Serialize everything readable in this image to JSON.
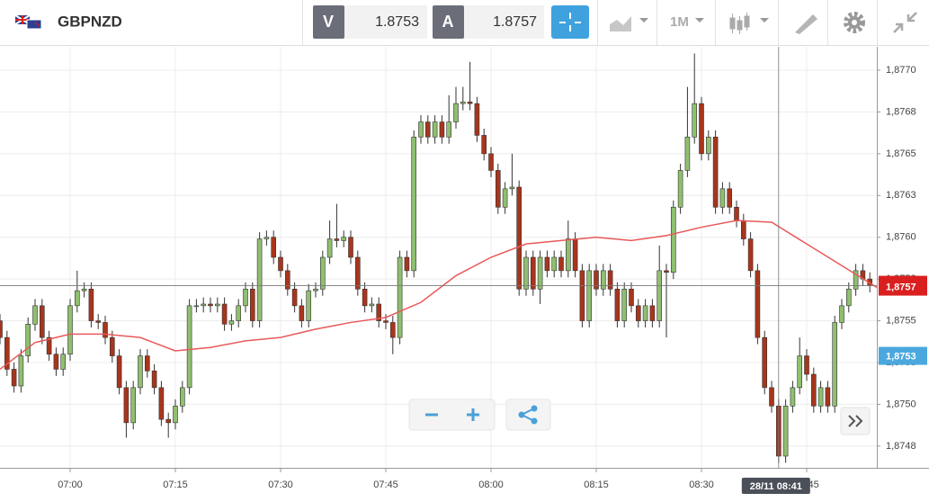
{
  "toolbar": {
    "symbol": "GBPNZD",
    "bid": {
      "label": "V",
      "price": "1.8753"
    },
    "ask": {
      "label": "A",
      "price": "1.8757"
    },
    "timeframe": "1M"
  },
  "chart_data": {
    "type": "candlestick",
    "x": [
      410,
      411,
      412,
      413,
      414,
      415,
      416,
      417,
      418,
      419,
      420,
      421,
      422,
      423,
      424,
      425,
      426,
      427,
      428,
      429,
      430,
      431,
      432,
      433,
      434,
      435,
      436,
      437,
      438,
      439,
      440,
      441,
      442,
      443,
      444,
      445,
      446,
      447,
      448,
      449,
      450,
      451,
      452,
      453,
      454,
      455,
      456,
      457,
      458,
      459,
      460,
      461,
      462,
      463,
      464,
      465,
      466,
      467,
      468,
      469,
      470,
      471,
      472,
      473,
      474,
      475,
      476,
      477,
      478,
      479,
      480,
      481,
      482,
      483,
      484,
      485,
      486,
      487,
      488,
      489,
      490,
      491,
      492,
      493,
      494,
      495,
      496,
      497,
      498,
      499,
      500,
      501,
      502,
      503,
      504,
      505,
      506,
      507,
      508,
      509,
      510,
      511,
      512,
      513,
      514,
      515,
      516,
      517,
      518,
      519,
      520,
      521,
      522,
      523,
      524,
      525,
      526,
      527,
      528,
      529,
      530,
      531,
      532,
      533,
      534
    ],
    "open": [
      1.8755,
      1.8754,
      1.87521,
      1.87511,
      1.87529,
      1.87548,
      1.87559,
      1.8754,
      1.8753,
      1.87521,
      1.8753,
      1.87559,
      1.87568,
      1.87569,
      1.8755,
      1.87549,
      1.8754,
      1.87529,
      1.8751,
      1.87489,
      1.8751,
      1.87529,
      1.8752,
      1.8751,
      1.87491,
      1.87489,
      1.87499,
      1.8751,
      1.87559,
      1.87559,
      1.8756,
      1.87559,
      1.8756,
      1.87548,
      1.8755,
      1.87559,
      1.87569,
      1.8755,
      1.87599,
      1.876,
      1.87588,
      1.8758,
      1.87569,
      1.87559,
      1.8755,
      1.87568,
      1.87569,
      1.87588,
      1.87599,
      1.87598,
      1.876,
      1.87588,
      1.87569,
      1.87559,
      1.8756,
      1.8755,
      1.87549,
      1.8754,
      1.87588,
      1.8758,
      1.8766,
      1.87669,
      1.8766,
      1.87669,
      1.8766,
      1.87669,
      1.8768,
      1.87681,
      1.8768,
      1.87661,
      1.8765,
      1.8764,
      1.87618,
      1.87629,
      1.8763,
      1.87569,
      1.87588,
      1.87569,
      1.87588,
      1.8758,
      1.87588,
      1.8758,
      1.87599,
      1.8758,
      1.8755,
      1.8758,
      1.87569,
      1.8758,
      1.87569,
      1.8755,
      1.87569,
      1.87559,
      1.8755,
      1.87559,
      1.8755,
      1.8758,
      1.87579,
      1.87618,
      1.8764,
      1.8766,
      1.8768,
      1.8765,
      1.8766,
      1.87618,
      1.87629,
      1.87618,
      1.8761,
      1.87599,
      1.8758,
      1.8754,
      1.8751,
      1.87499,
      1.87469,
      1.87499,
      1.8751,
      1.87529,
      1.87518,
      1.87499,
      1.8751,
      1.87499,
      1.87549,
      1.87559,
      1.87569,
      1.8758,
      1.87575
    ],
    "high": [
      1.87554,
      1.87544,
      1.87525,
      1.87533,
      1.87552,
      1.87563,
      1.87563,
      1.87544,
      1.87534,
      1.87534,
      1.87563,
      1.8758,
      1.87573,
      1.87573,
      1.87554,
      1.87553,
      1.87544,
      1.87533,
      1.87514,
      1.87514,
      1.87533,
      1.87533,
      1.87524,
      1.87514,
      1.87495,
      1.87503,
      1.87514,
      1.87563,
      1.87563,
      1.87564,
      1.87564,
      1.87564,
      1.87564,
      1.87554,
      1.87563,
      1.87573,
      1.87573,
      1.87603,
      1.87604,
      1.87604,
      1.87592,
      1.87584,
      1.87573,
      1.87563,
      1.87572,
      1.87573,
      1.87592,
      1.8761,
      1.8762,
      1.87604,
      1.87604,
      1.87592,
      1.87573,
      1.87564,
      1.87564,
      1.87554,
      1.87553,
      1.87592,
      1.87592,
      1.87664,
      1.87673,
      1.87673,
      1.87673,
      1.87673,
      1.87685,
      1.8769,
      1.8769,
      1.87705,
      1.87684,
      1.87665,
      1.87654,
      1.87644,
      1.87633,
      1.8765,
      1.87634,
      1.87592,
      1.87592,
      1.87592,
      1.87592,
      1.87592,
      1.87592,
      1.8761,
      1.87603,
      1.87584,
      1.87584,
      1.87584,
      1.87584,
      1.87584,
      1.87573,
      1.87573,
      1.87573,
      1.87563,
      1.87563,
      1.87563,
      1.87595,
      1.87584,
      1.87622,
      1.87644,
      1.8769,
      1.8771,
      1.87684,
      1.87664,
      1.87664,
      1.87633,
      1.87633,
      1.87622,
      1.87614,
      1.87603,
      1.87584,
      1.87544,
      1.87514,
      1.87503,
      1.87503,
      1.87514,
      1.8754,
      1.87533,
      1.87522,
      1.87514,
      1.87514,
      1.87553,
      1.87563,
      1.87573,
      1.87584,
      1.87584,
      1.87579
    ],
    "low": [
      1.87536,
      1.87517,
      1.87507,
      1.87507,
      1.87525,
      1.87544,
      1.87536,
      1.87526,
      1.87517,
      1.87517,
      1.87526,
      1.87555,
      1.87564,
      1.87546,
      1.87545,
      1.87536,
      1.87525,
      1.87506,
      1.8748,
      1.87485,
      1.87506,
      1.87516,
      1.87506,
      1.87487,
      1.8748,
      1.87485,
      1.87495,
      1.87506,
      1.87555,
      1.87555,
      1.87555,
      1.87555,
      1.87544,
      1.87544,
      1.87546,
      1.87555,
      1.87546,
      1.87546,
      1.87595,
      1.87584,
      1.87576,
      1.87565,
      1.87555,
      1.87546,
      1.87546,
      1.87564,
      1.87565,
      1.87584,
      1.87594,
      1.87594,
      1.87584,
      1.87565,
      1.87555,
      1.87555,
      1.87546,
      1.87545,
      1.8753,
      1.87536,
      1.87576,
      1.87576,
      1.87656,
      1.87656,
      1.87656,
      1.87656,
      1.87656,
      1.87665,
      1.87676,
      1.87676,
      1.87657,
      1.87646,
      1.87636,
      1.87614,
      1.87614,
      1.87625,
      1.87565,
      1.87565,
      1.87565,
      1.8756,
      1.87576,
      1.87576,
      1.87576,
      1.87576,
      1.87576,
      1.87546,
      1.87546,
      1.87565,
      1.87565,
      1.87565,
      1.87546,
      1.87546,
      1.87555,
      1.87546,
      1.87546,
      1.87546,
      1.87546,
      1.8754,
      1.87575,
      1.87614,
      1.87636,
      1.87656,
      1.87646,
      1.87646,
      1.87614,
      1.87614,
      1.87614,
      1.87606,
      1.87595,
      1.87576,
      1.87536,
      1.87506,
      1.87495,
      1.87465,
      1.87465,
      1.87495,
      1.87506,
      1.87514,
      1.87495,
      1.87495,
      1.87495,
      1.87495,
      1.87545,
      1.87555,
      1.87565,
      1.87571,
      1.87567
    ],
    "close": [
      1.8754,
      1.87521,
      1.87511,
      1.87529,
      1.87548,
      1.87559,
      1.8754,
      1.8753,
      1.87521,
      1.8753,
      1.87559,
      1.87568,
      1.87569,
      1.8755,
      1.87549,
      1.8754,
      1.87529,
      1.8751,
      1.87489,
      1.8751,
      1.87529,
      1.8752,
      1.8751,
      1.87491,
      1.87489,
      1.87499,
      1.8751,
      1.87559,
      1.87559,
      1.8756,
      1.87559,
      1.8756,
      1.87548,
      1.8755,
      1.87559,
      1.87569,
      1.8755,
      1.87599,
      1.876,
      1.87588,
      1.8758,
      1.87569,
      1.87559,
      1.8755,
      1.87568,
      1.87569,
      1.87588,
      1.87599,
      1.87598,
      1.876,
      1.87588,
      1.87569,
      1.87559,
      1.8756,
      1.8755,
      1.87549,
      1.8754,
      1.87588,
      1.8758,
      1.8766,
      1.87669,
      1.8766,
      1.87669,
      1.8766,
      1.87669,
      1.8768,
      1.87681,
      1.8768,
      1.87661,
      1.8765,
      1.8764,
      1.87618,
      1.87629,
      1.8763,
      1.87569,
      1.87588,
      1.87569,
      1.87588,
      1.8758,
      1.87588,
      1.8758,
      1.87599,
      1.8758,
      1.8755,
      1.8758,
      1.87569,
      1.8758,
      1.87569,
      1.8755,
      1.87569,
      1.87559,
      1.8755,
      1.87559,
      1.8755,
      1.8758,
      1.87579,
      1.87618,
      1.8764,
      1.8766,
      1.8768,
      1.8765,
      1.8766,
      1.87618,
      1.87629,
      1.87618,
      1.8761,
      1.87599,
      1.8758,
      1.8754,
      1.8751,
      1.87499,
      1.87469,
      1.87499,
      1.8751,
      1.87529,
      1.87518,
      1.87499,
      1.8751,
      1.87499,
      1.87549,
      1.87559,
      1.87569,
      1.8758,
      1.87575,
      1.87571
    ],
    "up_color": "#8fbf6f",
    "down_color": "#a8351c",
    "moving_average": {
      "color": "#e8595a",
      "x": [
        410,
        415,
        420,
        425,
        430,
        435,
        440,
        445,
        450,
        455,
        460,
        465,
        470,
        475,
        480,
        485,
        490,
        495,
        500,
        505,
        510,
        515,
        520,
        525,
        530,
        535
      ],
      "values": [
        1.87521,
        1.87537,
        1.87542,
        1.87542,
        1.8754,
        1.87532,
        1.87534,
        1.87538,
        1.8754,
        1.87545,
        1.87549,
        1.87552,
        1.87561,
        1.87577,
        1.87588,
        1.87596,
        1.87598,
        1.876,
        1.87598,
        1.87601,
        1.87606,
        1.8761,
        1.87609,
        1.87596,
        1.87583,
        1.8757
      ]
    },
    "xlim": [
      410,
      535
    ],
    "ylim": [
      1.87462,
      1.87714
    ],
    "xticks": [
      {
        "value": 420,
        "label": "07:00"
      },
      {
        "value": 435,
        "label": "07:15"
      },
      {
        "value": 450,
        "label": "07:30"
      },
      {
        "value": 465,
        "label": "07:45"
      },
      {
        "value": 480,
        "label": "08:00"
      },
      {
        "value": 495,
        "label": "08:15"
      },
      {
        "value": 510,
        "label": "08:30"
      },
      {
        "value": 525,
        "label": "08:45"
      }
    ],
    "yticks": [
      {
        "value": 1.877,
        "label": "1,8770"
      },
      {
        "value": 1.87675,
        "label": "1,8768"
      },
      {
        "value": 1.8765,
        "label": "1,8765"
      },
      {
        "value": 1.87625,
        "label": "1,8763"
      },
      {
        "value": 1.876,
        "label": "1,8760"
      },
      {
        "value": 1.87575,
        "label": "1,8758"
      },
      {
        "value": 1.8755,
        "label": "1,8755"
      },
      {
        "value": 1.87525,
        "label": "1,8753"
      },
      {
        "value": 1.875,
        "label": "1,8750"
      },
      {
        "value": 1.87475,
        "label": "1,8748"
      }
    ],
    "grid": true,
    "last_price": {
      "value": 1.87571,
      "label": "1,8757",
      "color": "#d9201f"
    },
    "bid_price": {
      "value": 1.87529,
      "label": "1,8753",
      "color": "#4aa8de"
    },
    "crosshair": {
      "value": 521,
      "label": "28/11 08:41"
    }
  }
}
